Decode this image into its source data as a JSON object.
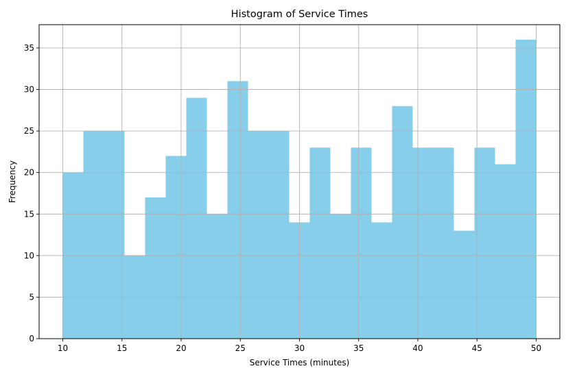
{
  "chart_data": {
    "type": "bar",
    "histogram": true,
    "title": "Histogram of Service Times",
    "xlabel": "Service Times (minutes)",
    "ylabel": "Frequency",
    "bin_edges": [
      10,
      11.739,
      13.478,
      15.217,
      16.957,
      18.696,
      20.435,
      22.174,
      23.913,
      25.652,
      27.391,
      29.13,
      30.87,
      32.609,
      34.348,
      36.087,
      37.826,
      39.565,
      41.304,
      43.043,
      44.783,
      46.522,
      48.261,
      50
    ],
    "values": [
      20,
      25,
      25,
      10,
      17,
      22,
      29,
      15,
      31,
      25,
      25,
      14,
      23,
      15,
      23,
      14,
      28,
      23,
      23,
      13,
      23,
      21,
      36
    ],
    "xlim": [
      8,
      52
    ],
    "ylim": [
      0,
      37.8
    ],
    "xticks": [
      10,
      15,
      20,
      25,
      30,
      35,
      40,
      45,
      50
    ],
    "yticks": [
      0,
      5,
      10,
      15,
      20,
      25,
      30,
      35
    ],
    "grid": true,
    "bar_color": "#87ceeb",
    "grid_color": "#b0b0b0"
  }
}
